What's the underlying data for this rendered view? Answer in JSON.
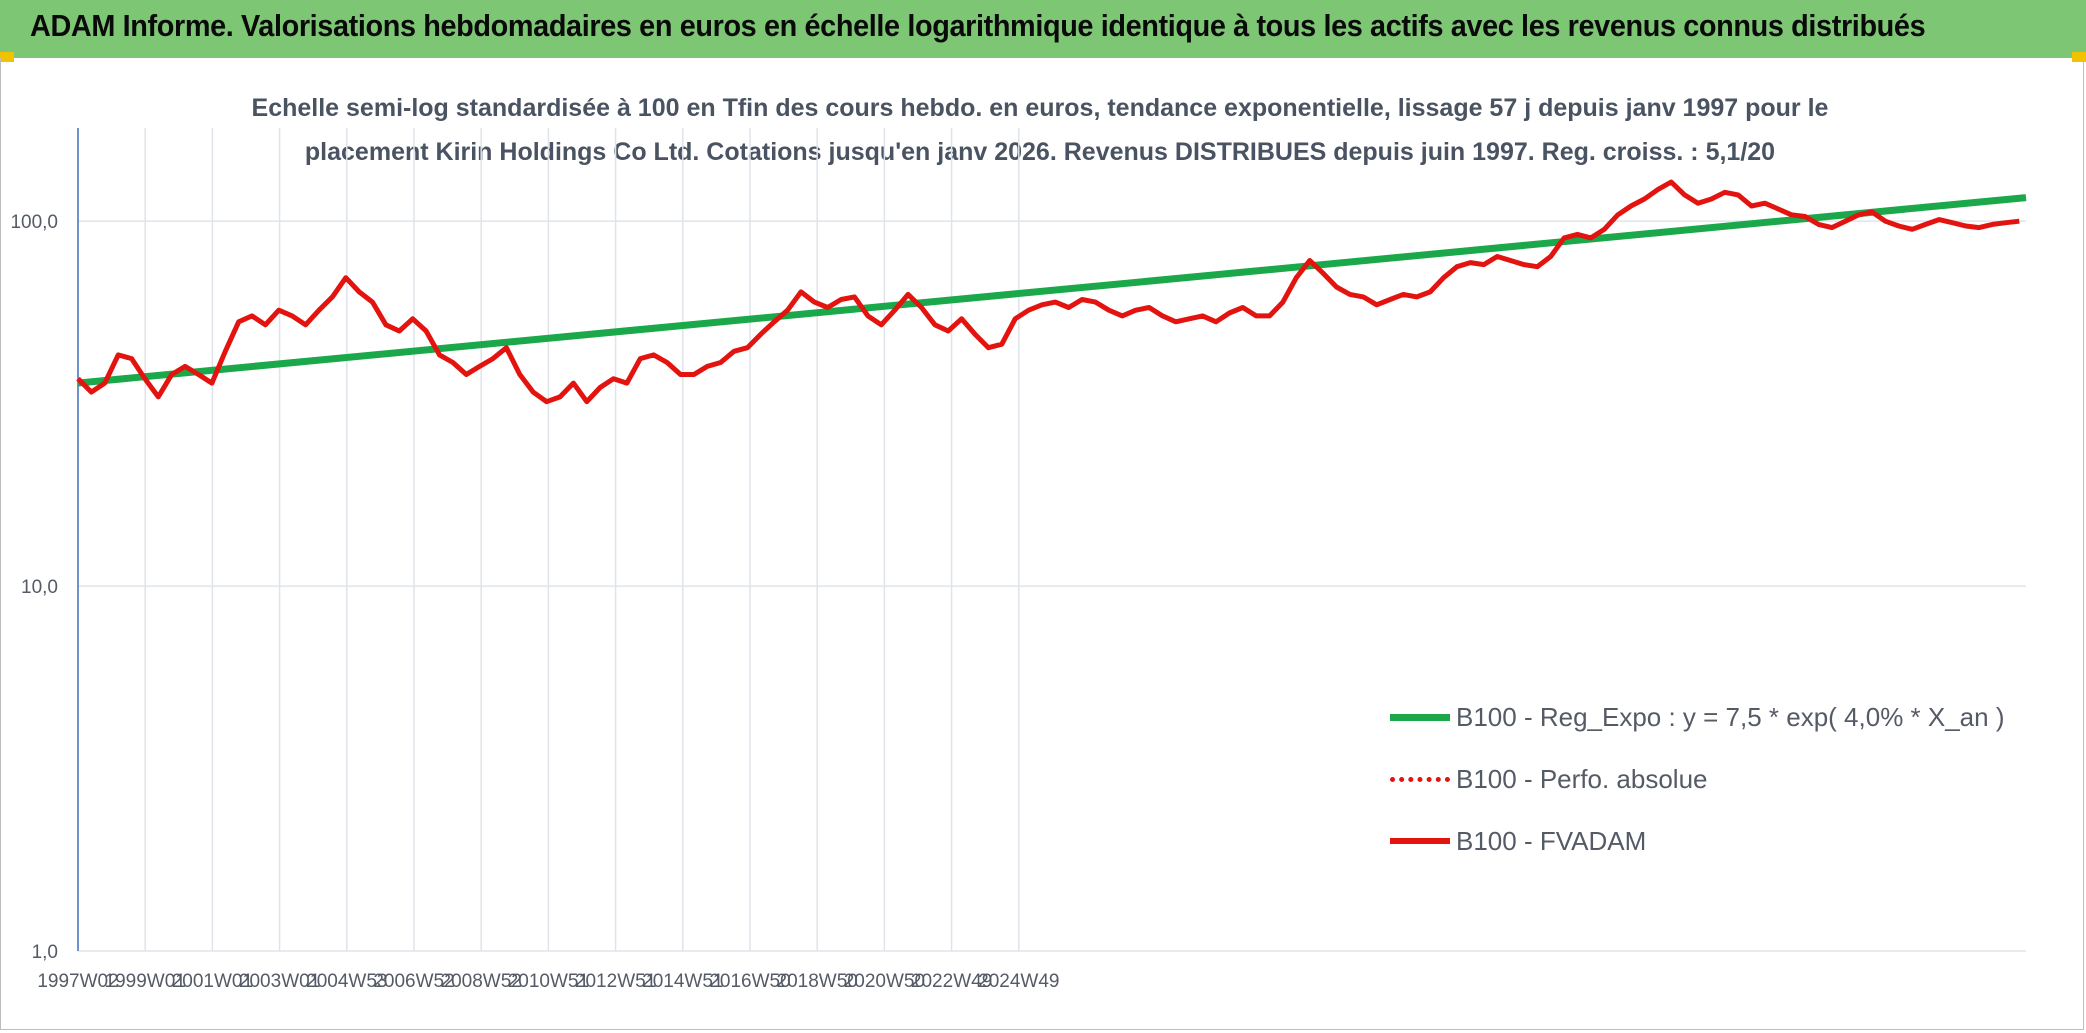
{
  "header": {
    "title": "ADAM Informe. Valorisations hebdomadaires en euros en échelle logarithmique identique à tous les actifs avec les revenus connus distribués"
  },
  "colors": {
    "header_bg": "#7dc674",
    "regression": "#1aa84a",
    "fvadam": "#e3140f",
    "perfo": "#e3140f",
    "grid": "#dfe4ea",
    "axis": "#4472c4"
  },
  "chart_data": {
    "type": "line",
    "title_line1": "Echelle semi-log standardisée à 100 en Tfin des cours hebdo. en euros, tendance exponentielle, lissage 57 j depuis janv 1997 pour le",
    "title_line2": "placement Kirin Holdings Co Ltd. Cotations jusqu'en janv 2026. Revenus DISTRIBUES depuis juin 1997. Reg. croiss. : 5,1/20",
    "yscale": "log",
    "ylim": [
      1,
      180
    ],
    "y_ticks": [
      {
        "value": 100,
        "label": "100,0"
      },
      {
        "value": 10,
        "label": "10,0"
      },
      {
        "value": 1,
        "label": "1,0"
      }
    ],
    "x_range": [
      1997.0,
      2026.1
    ],
    "x_tick_labels": [
      "1997W02",
      "1999W01",
      "2001W01",
      "2003W01",
      "2004W53",
      "2006W52",
      "2008W52",
      "2010W51",
      "2012W51",
      "2014W51",
      "2016W50",
      "2018W50",
      "2020W50",
      "2022W49",
      "2024W49"
    ],
    "grid": true,
    "legend_position": "bottom-right",
    "series": [
      {
        "name": "B100 - Reg_Expo : y = 7,5 * exp( 4,0% *  X_an )",
        "style": "solid-thick",
        "x": [
          1997.0,
          2026.1
        ],
        "y": [
          36,
          116
        ]
      },
      {
        "name": "B100 - Perfo. absolue",
        "style": "dotted",
        "x": [],
        "y": []
      },
      {
        "name": "B100 - FVADAM",
        "style": "solid",
        "x": [
          1997.0,
          1997.2,
          1997.4,
          1997.6,
          1997.8,
          1998.0,
          1998.2,
          1998.4,
          1998.6,
          1998.8,
          1999.0,
          1999.2,
          1999.4,
          1999.6,
          1999.8,
          2000.0,
          2000.2,
          2000.4,
          2000.6,
          2000.8,
          2001.0,
          2001.2,
          2001.4,
          2001.6,
          2001.8,
          2002.0,
          2002.2,
          2002.4,
          2002.6,
          2002.8,
          2003.0,
          2003.2,
          2003.4,
          2003.6,
          2003.8,
          2004.0,
          2004.2,
          2004.4,
          2004.6,
          2004.8,
          2005.0,
          2005.2,
          2005.4,
          2005.6,
          2005.8,
          2006.0,
          2006.2,
          2006.4,
          2006.6,
          2006.8,
          2007.0,
          2007.2,
          2007.4,
          2007.6,
          2007.8,
          2008.0,
          2008.2,
          2008.4,
          2008.6,
          2008.8,
          2009.0,
          2009.2,
          2009.4,
          2009.6,
          2009.8,
          2010.0,
          2010.2,
          2010.4,
          2010.6,
          2010.8,
          2011.0,
          2011.2,
          2011.4,
          2011.6,
          2011.8,
          2012.0,
          2012.2,
          2012.4,
          2012.6,
          2012.8,
          2013.0,
          2013.2,
          2013.4,
          2013.6,
          2013.8,
          2014.0,
          2014.2,
          2014.4,
          2014.6,
          2014.8,
          2015.0,
          2015.2,
          2015.4,
          2015.6,
          2015.8,
          2016.0,
          2016.2,
          2016.4,
          2016.6,
          2016.8,
          2017.0,
          2017.2,
          2017.4,
          2017.6,
          2017.8,
          2018.0,
          2018.2,
          2018.4,
          2018.6,
          2018.8,
          2019.0,
          2019.2,
          2019.4,
          2019.6,
          2019.8,
          2020.0,
          2020.2,
          2020.4,
          2020.6,
          2020.8,
          2021.0,
          2021.2,
          2021.4,
          2021.6,
          2021.8,
          2022.0,
          2022.2,
          2022.4,
          2022.6,
          2022.8,
          2023.0,
          2023.2,
          2023.4,
          2023.6,
          2023.8,
          2024.0,
          2024.2,
          2024.4,
          2024.6,
          2024.8,
          2025.0,
          2025.2,
          2025.4,
          2025.6,
          2025.8,
          2026.0
        ],
        "y": [
          37,
          34,
          36,
          43,
          42,
          37,
          33,
          38,
          40,
          38,
          36,
          44,
          53,
          55,
          52,
          57,
          55,
          52,
          57,
          62,
          70,
          64,
          60,
          52,
          50,
          54,
          50,
          43,
          41,
          38,
          40,
          42,
          45,
          38,
          34,
          32,
          33,
          36,
          32,
          35,
          37,
          36,
          42,
          43,
          41,
          38,
          38,
          40,
          41,
          44,
          45,
          49,
          53,
          57,
          64,
          60,
          58,
          61,
          62,
          55,
          52,
          57,
          63,
          58,
          52,
          50,
          54,
          49,
          45,
          46,
          54,
          57,
          59,
          60,
          58,
          61,
          60,
          57,
          55,
          57,
          58,
          55,
          53,
          54,
          55,
          53,
          56,
          58,
          55,
          55,
          60,
          70,
          78,
          72,
          66,
          63,
          62,
          59,
          61,
          63,
          62,
          64,
          70,
          75,
          77,
          76,
          80,
          78,
          76,
          75,
          80,
          90,
          92,
          90,
          95,
          104,
          110,
          115,
          122,
          128,
          118,
          112,
          115,
          120,
          118,
          110,
          112,
          108,
          104,
          103,
          98,
          96,
          100,
          104,
          106,
          100,
          97,
          95,
          98,
          101,
          99,
          97,
          96,
          98,
          99,
          100
        ]
      }
    ]
  }
}
